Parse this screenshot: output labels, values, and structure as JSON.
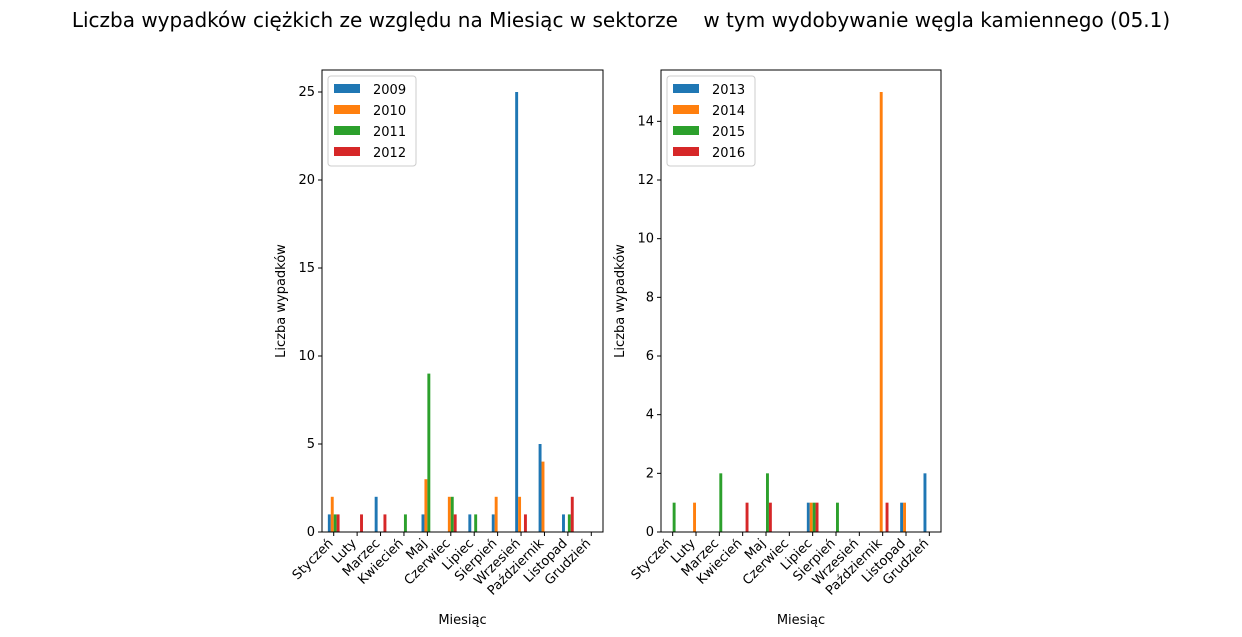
{
  "title": "Liczba wypadków ciężkich ze względu na Miesiąc w sektorze    w tym wydobywanie węgla kamiennego (05.1)",
  "colors": [
    "#1f77b4",
    "#ff7f0e",
    "#2ca02c",
    "#d62728"
  ],
  "chart_data": [
    {
      "type": "bar",
      "xlabel": "Miesiąc",
      "ylabel": "Liczba wypadków",
      "categories": [
        "Styczeń",
        "Luty",
        "Marzec",
        "Kwiecień",
        "Maj",
        "Czerwiec",
        "Lipiec",
        "Sierpień",
        "Wrzesień",
        "Październik",
        "Listopad",
        "Grudzień"
      ],
      "ylim": [
        0,
        26.25
      ],
      "yticks": [
        0,
        5,
        10,
        15,
        20,
        25
      ],
      "legend": "top-left",
      "grid": false,
      "series": [
        {
          "name": "2009",
          "values": [
            1,
            0,
            2,
            0,
            1,
            0,
            1,
            1,
            25,
            5,
            1,
            0
          ]
        },
        {
          "name": "2010",
          "values": [
            2,
            0,
            0,
            0,
            3,
            2,
            0,
            2,
            2,
            4,
            0,
            0
          ]
        },
        {
          "name": "2011",
          "values": [
            1,
            0,
            0,
            1,
            9,
            2,
            1,
            0,
            0,
            0,
            1,
            0
          ]
        },
        {
          "name": "2012",
          "values": [
            1,
            1,
            1,
            0,
            0,
            1,
            0,
            0,
            1,
            0,
            2,
            0
          ]
        }
      ]
    },
    {
      "type": "bar",
      "xlabel": "Miesiąc",
      "ylabel": "Liczba wypadków",
      "categories": [
        "Styczeń",
        "Luty",
        "Marzec",
        "Kwiecień",
        "Maj",
        "Czerwiec",
        "Lipiec",
        "Sierpień",
        "Wrzesień",
        "Październik",
        "Listopad",
        "Grudzień"
      ],
      "ylim": [
        0,
        15.75
      ],
      "yticks": [
        0,
        2,
        4,
        6,
        8,
        10,
        12,
        14
      ],
      "legend": "top-left",
      "grid": false,
      "series": [
        {
          "name": "2013",
          "values": [
            0,
            0,
            0,
            0,
            0,
            0,
            1,
            0,
            0,
            0,
            1,
            2
          ]
        },
        {
          "name": "2014",
          "values": [
            0,
            1,
            0,
            0,
            0,
            0,
            1,
            0,
            0,
            15,
            1,
            0
          ]
        },
        {
          "name": "2015",
          "values": [
            1,
            0,
            2,
            0,
            2,
            0,
            1,
            1,
            0,
            0,
            0,
            0
          ]
        },
        {
          "name": "2016",
          "values": [
            0,
            0,
            0,
            1,
            1,
            0,
            1,
            0,
            0,
            1,
            0,
            0
          ]
        }
      ]
    }
  ]
}
